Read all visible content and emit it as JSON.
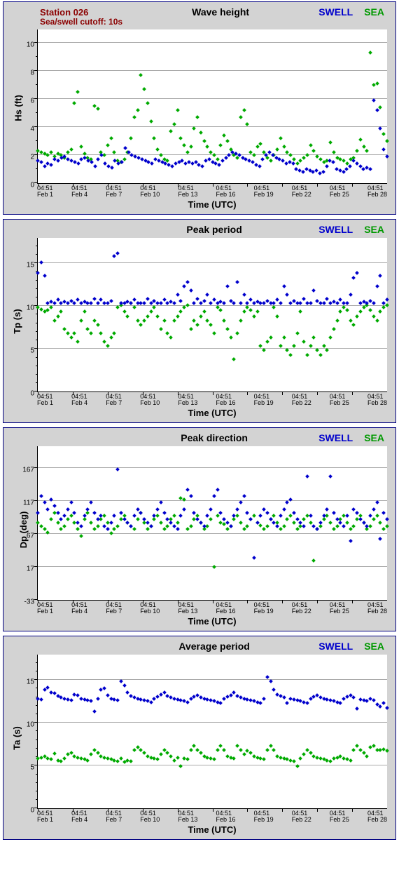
{
  "station": {
    "name": "Station 026",
    "cutoff": "Sea/swell cutoff: 10s",
    "color": "#8b0000"
  },
  "legend": {
    "swell_label": "SWELL",
    "swell_color": "#0000cc",
    "sea_label": "SEA",
    "sea_color": "#009900"
  },
  "xlabel": "Time (UTC)",
  "x_ticks": [
    {
      "t": "04:51",
      "d": "Feb 1"
    },
    {
      "t": "04:51",
      "d": "Feb 4"
    },
    {
      "t": "04:51",
      "d": "Feb 7"
    },
    {
      "t": "04:51",
      "d": "Feb 10"
    },
    {
      "t": "04:51",
      "d": "Feb 13"
    },
    {
      "t": "04:51",
      "d": "Feb 16"
    },
    {
      "t": "04:51",
      "d": "Feb 19"
    },
    {
      "t": "04:51",
      "d": "Feb 22"
    },
    {
      "t": "04:51",
      "d": "Feb 25"
    },
    {
      "t": "04:51",
      "d": "Feb 28"
    }
  ],
  "colors": {
    "panel_bg": "#d3d3d3",
    "panel_border": "#000080",
    "plot_bg": "#ffffff",
    "grid": "#aaaaaa",
    "axis": "#000000",
    "swell_marker": "#0000cc",
    "sea_marker": "#00aa00"
  },
  "charts": [
    {
      "title": "Wave height",
      "ylabel": "Hs (ft)",
      "ylim": [
        0,
        11
      ],
      "y_ticks": [
        0,
        2,
        4,
        6,
        8,
        10
      ],
      "y_minor": [
        1,
        3,
        5,
        7,
        9
      ],
      "swell": [
        1.4,
        1.3,
        1.0,
        1.2,
        1.1,
        1.5,
        1.4,
        1.6,
        1.7,
        1.5,
        1.4,
        1.3,
        1.2,
        1.5,
        1.6,
        1.4,
        1.3,
        1.0,
        1.5,
        1.8,
        1.2,
        1.0,
        0.9,
        1.4,
        1.2,
        1.3,
        2.3,
        2.0,
        1.8,
        1.7,
        1.6,
        1.5,
        1.4,
        1.3,
        1.2,
        1.5,
        1.4,
        1.3,
        1.2,
        1.1,
        1.0,
        1.2,
        1.3,
        1.4,
        1.2,
        1.3,
        1.2,
        1.3,
        1.1,
        1.0,
        1.4,
        1.5,
        1.3,
        1.2,
        1.1,
        1.4,
        1.6,
        1.8,
        2.0,
        1.9,
        1.8,
        1.6,
        1.5,
        1.4,
        1.3,
        1.1,
        1.0,
        1.5,
        1.8,
        2.0,
        1.8,
        1.6,
        1.5,
        1.4,
        1.2,
        1.3,
        1.2,
        0.8,
        0.7,
        0.6,
        0.8,
        0.7,
        0.6,
        0.7,
        0.5,
        0.6,
        1.0,
        1.4,
        1.3,
        0.8,
        0.7,
        0.6,
        0.8,
        1.0,
        1.4,
        1.2,
        1.0,
        0.8,
        0.9,
        0.8,
        5.7,
        5.0,
        3.7,
        2.2,
        1.7
      ],
      "sea": [
        2.1,
        2.0,
        1.9,
        1.8,
        2.0,
        1.7,
        1.9,
        1.8,
        1.6,
        2.0,
        2.2,
        5.5,
        6.3,
        2.4,
        1.9,
        1.6,
        1.5,
        5.3,
        5.1,
        2.0,
        1.8,
        2.5,
        3.0,
        2.0,
        1.4,
        1.3,
        1.5,
        2.0,
        3.0,
        4.5,
        5.0,
        7.5,
        6.5,
        5.5,
        4.2,
        3.0,
        2.2,
        1.8,
        1.5,
        1.4,
        3.5,
        4.0,
        5.0,
        3.0,
        2.5,
        2.0,
        2.4,
        3.7,
        4.5,
        3.4,
        2.8,
        2.4,
        2.0,
        1.8,
        1.5,
        2.5,
        3.2,
        2.8,
        2.2,
        1.8,
        1.6,
        4.5,
        5.0,
        4.0,
        2.0,
        1.8,
        2.4,
        2.6,
        2.0,
        1.6,
        1.4,
        1.8,
        2.2,
        3.0,
        2.4,
        2.0,
        1.8,
        1.5,
        1.2,
        1.4,
        1.6,
        1.8,
        2.5,
        2.1,
        1.7,
        1.5,
        1.3,
        1.4,
        2.7,
        2.0,
        1.6,
        1.5,
        1.4,
        1.2,
        1.5,
        1.6,
        2.1,
        2.9,
        2.4,
        2.1,
        9.1,
        6.8,
        6.9,
        5.2,
        3.3,
        2.8
      ]
    },
    {
      "title": "Peak period",
      "ylabel": "Tp (s)",
      "ylim": [
        0,
        18
      ],
      "y_ticks": [
        0,
        5,
        10,
        15
      ],
      "y_minor": [
        1,
        2,
        3,
        4,
        6,
        7,
        8,
        9,
        11,
        12,
        13,
        14,
        16,
        17
      ],
      "swell": [
        13.5,
        14.8,
        13.2,
        10,
        10.2,
        10,
        10.4,
        10,
        10.2,
        10,
        10.3,
        10,
        10.4,
        10,
        10.2,
        10,
        10,
        10.5,
        10,
        10.4,
        10,
        10,
        10.3,
        15.5,
        15.8,
        10,
        10,
        10.2,
        10,
        10.4,
        10,
        10,
        10,
        10.5,
        10,
        10.3,
        10,
        10,
        10.4,
        10,
        10.2,
        10,
        11,
        10.3,
        12,
        12.5,
        11.5,
        10,
        10.5,
        10,
        10.3,
        11,
        10,
        10.4,
        10,
        10.2,
        10,
        12,
        10.3,
        10,
        12.5,
        10,
        11,
        10,
        10.4,
        10,
        10.2,
        10,
        10,
        10.3,
        10,
        10,
        10.4,
        10,
        12,
        11,
        10,
        10.3,
        10,
        10,
        10.5,
        10,
        10,
        11.5,
        10.3,
        10,
        10,
        10.5,
        10,
        10.2,
        10,
        10.4,
        10,
        10,
        11,
        13,
        13.5,
        10,
        10.2,
        10,
        10.3,
        10,
        12,
        13.2,
        10,
        10.4
      ],
      "sea": [
        9.5,
        9.3,
        9,
        9.2,
        9.5,
        8,
        8.5,
        9,
        7,
        6.5,
        6,
        6.5,
        5.5,
        8,
        9,
        7,
        6.5,
        8,
        7.5,
        6.5,
        5.5,
        5,
        6,
        6.5,
        9.5,
        9.8,
        9,
        8.5,
        10,
        9.5,
        8,
        7.5,
        8,
        8.5,
        9,
        9.5,
        8.5,
        7,
        8,
        6.5,
        6,
        8,
        8.5,
        9,
        9.5,
        9.8,
        7,
        8,
        7.5,
        8.5,
        9,
        8,
        7.5,
        6.5,
        9.5,
        9.2,
        8,
        7,
        6,
        3.5,
        6.5,
        8,
        9,
        9.5,
        9.2,
        8.5,
        9,
        5,
        4.5,
        5.5,
        6,
        9.5,
        8.5,
        5,
        6,
        4.5,
        4,
        5,
        6.5,
        9,
        5.5,
        4,
        5,
        6,
        4.5,
        4,
        5,
        4.5,
        6,
        7,
        8,
        9,
        9.5,
        9.2,
        8,
        7.5,
        8.5,
        9,
        9.5,
        9.8,
        9.2,
        8.5,
        8,
        9,
        9.5,
        9.8
      ]
    },
    {
      "title": "Peak direction",
      "ylabel": "Dp (deg)",
      "ylim": [
        -33,
        200
      ],
      "y_ticks": [
        -33,
        17,
        67,
        117,
        167
      ],
      "y_minor": [],
      "swell": [
        95,
        120,
        110,
        100,
        115,
        105,
        95,
        85,
        90,
        100,
        110,
        95,
        80,
        75,
        90,
        100,
        110,
        95,
        85,
        90,
        75,
        70,
        80,
        90,
        160,
        95,
        85,
        80,
        75,
        90,
        100,
        95,
        85,
        80,
        75,
        90,
        100,
        110,
        95,
        85,
        80,
        75,
        70,
        90,
        100,
        130,
        120,
        95,
        85,
        80,
        75,
        90,
        100,
        120,
        130,
        95,
        85,
        80,
        75,
        90,
        100,
        110,
        120,
        95,
        85,
        27,
        80,
        90,
        100,
        95,
        85,
        80,
        75,
        90,
        100,
        110,
        115,
        95,
        85,
        80,
        75,
        150,
        90,
        75,
        70,
        80,
        90,
        100,
        150,
        95,
        85,
        80,
        75,
        90,
        52,
        100,
        95,
        85,
        80,
        75,
        90,
        100,
        110,
        55,
        95,
        85
      ],
      "sea": [
        80,
        75,
        70,
        65,
        85,
        95,
        80,
        70,
        75,
        85,
        90,
        80,
        70,
        60,
        85,
        95,
        80,
        70,
        75,
        85,
        90,
        80,
        64,
        70,
        75,
        85,
        90,
        80,
        75,
        70,
        85,
        95,
        80,
        70,
        75,
        85,
        90,
        80,
        70,
        75,
        85,
        90,
        80,
        117,
        115,
        70,
        75,
        85,
        90,
        80,
        70,
        75,
        85,
        13,
        90,
        80,
        78,
        70,
        75,
        85,
        90,
        80,
        70,
        75,
        85,
        90,
        80,
        76,
        70,
        75,
        85,
        90,
        80,
        70,
        75,
        85,
        90,
        80,
        70,
        75,
        85,
        90,
        80,
        23,
        70,
        75,
        85,
        90,
        80,
        70,
        75,
        85,
        90,
        80,
        70,
        75,
        85,
        90,
        80,
        70,
        75,
        85,
        90,
        80,
        70,
        75
      ]
    },
    {
      "title": "Average period",
      "ylabel": "Ta (s)",
      "ylim": [
        0,
        18
      ],
      "y_ticks": [
        0,
        5,
        10,
        15
      ],
      "y_minor": [
        1,
        2,
        3,
        4,
        6,
        7,
        8,
        9,
        11,
        12,
        13,
        14,
        16,
        17
      ],
      "swell": [
        12.5,
        12.4,
        13.5,
        13.8,
        13.2,
        13.1,
        12.8,
        12.6,
        12.5,
        12.4,
        12.3,
        13.0,
        12.9,
        12.5,
        12.4,
        12.3,
        12.2,
        11.0,
        12.5,
        13.5,
        13.7,
        12.9,
        12.5,
        12.4,
        12.3,
        14.5,
        14.0,
        13.2,
        12.8,
        12.6,
        12.5,
        12.4,
        12.3,
        12.2,
        12.1,
        12.5,
        12.7,
        13.0,
        13.2,
        12.8,
        12.6,
        12.5,
        12.4,
        12.3,
        12.2,
        12.1,
        12.5,
        12.7,
        12.9,
        12.6,
        12.5,
        12.4,
        12.3,
        12.2,
        12.1,
        12.0,
        12.5,
        12.7,
        12.9,
        13.2,
        12.8,
        12.6,
        12.5,
        12.4,
        12.3,
        12.2,
        12.1,
        12.0,
        12.5,
        15.0,
        14.5,
        13.5,
        13.0,
        12.8,
        12.6,
        12.0,
        12.5,
        12.4,
        12.3,
        12.2,
        12.1,
        12.0,
        12.5,
        12.7,
        12.9,
        12.6,
        12.5,
        12.4,
        12.3,
        12.2,
        12.1,
        12.0,
        12.5,
        12.7,
        12.9,
        12.6,
        11.3,
        12.4,
        12.3,
        12.2,
        12.5,
        12.3,
        11.8,
        11.6,
        12.0,
        11.4
      ],
      "sea": [
        5.5,
        5.6,
        5.8,
        5.5,
        5.4,
        6.1,
        5.3,
        5.2,
        5.5,
        6.0,
        6.2,
        5.8,
        5.6,
        5.5,
        5.4,
        5.3,
        6.0,
        6.5,
        6.2,
        5.8,
        5.6,
        5.5,
        5.4,
        5.3,
        5.2,
        5.5,
        5.1,
        5.3,
        5.2,
        6.5,
        6.8,
        6.5,
        6.2,
        5.8,
        5.6,
        5.5,
        5.4,
        6.0,
        6.5,
        6.2,
        5.8,
        5.3,
        5.6,
        4.6,
        5.5,
        5.4,
        6.5,
        7.0,
        6.5,
        6.2,
        5.8,
        5.6,
        5.5,
        5.4,
        6.5,
        7.0,
        6.5,
        5.8,
        5.6,
        5.5,
        7.0,
        6.5,
        6.0,
        6.4,
        6.2,
        5.8,
        5.6,
        5.5,
        5.4,
        6.5,
        7.0,
        6.5,
        5.8,
        5.6,
        5.5,
        5.4,
        5.3,
        5.2,
        4.6,
        5.5,
        6.0,
        6.5,
        6.2,
        5.8,
        5.6,
        5.5,
        5.4,
        5.3,
        5.2,
        5.5,
        5.6,
        5.8,
        5.5,
        5.4,
        5.3,
        6.5,
        7.0,
        6.5,
        6.2,
        5.8,
        6.8,
        7.0,
        6.5,
        6.5,
        6.6,
        6.4
      ]
    }
  ]
}
